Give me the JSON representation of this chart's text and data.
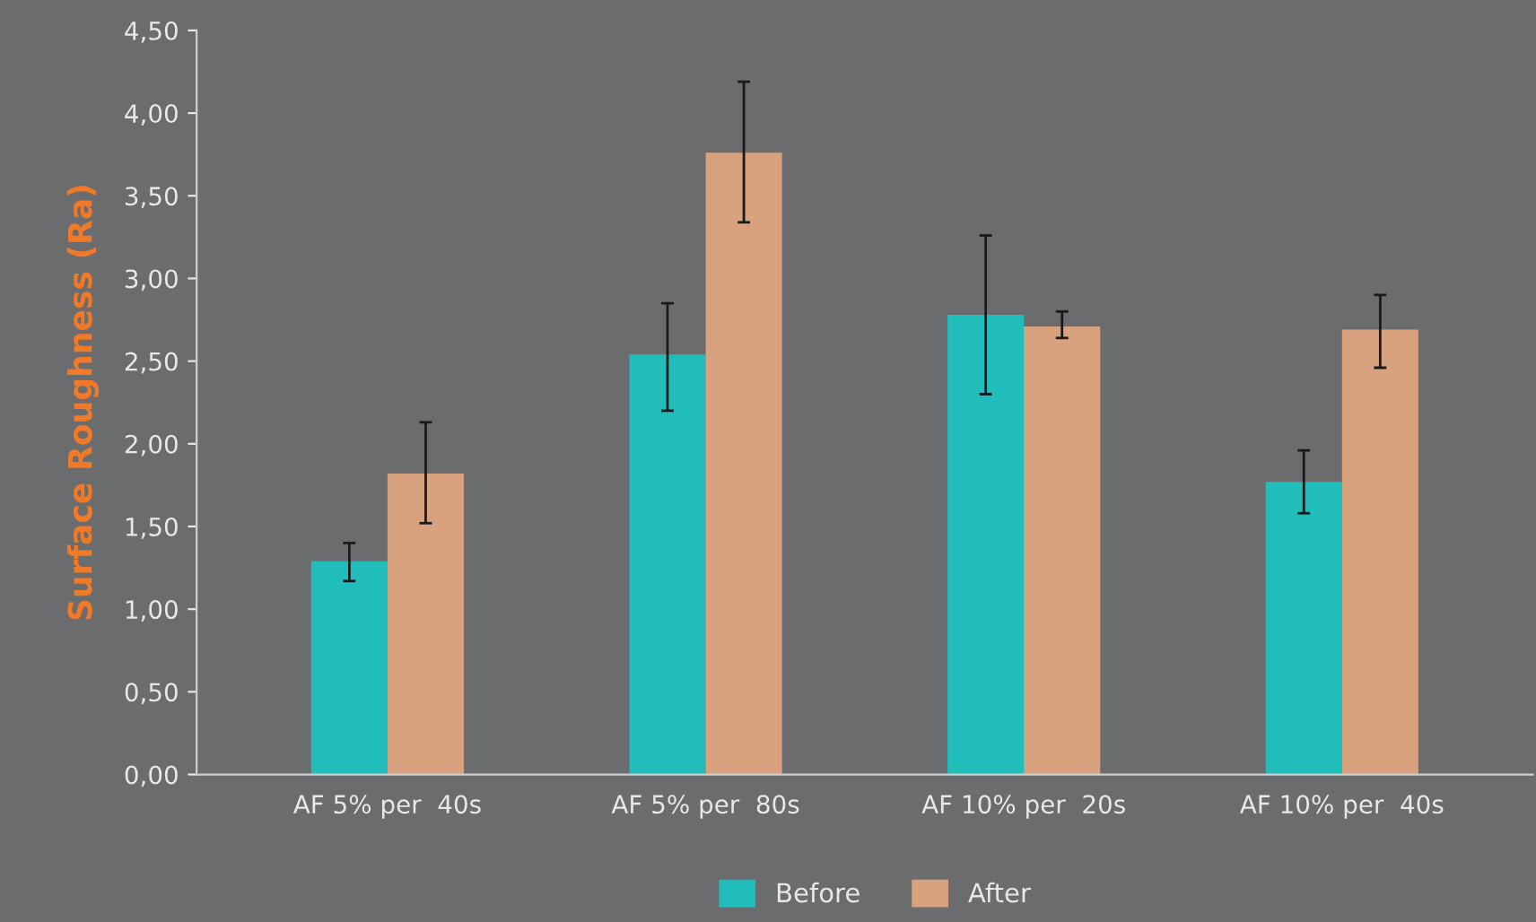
{
  "chart_data": {
    "type": "bar",
    "ylabel": "Surface Roughness (Ra)",
    "categories": [
      "AF 5% per  40s",
      "AF 5% per  80s",
      "AF 10% per  20s",
      "AF 10% per  40s"
    ],
    "series": [
      {
        "name": "Before",
        "color": "#20bdbb",
        "values": [
          1.29,
          2.54,
          2.78,
          1.77
        ],
        "errors": [
          [
            1.17,
            1.4
          ],
          [
            2.2,
            2.85
          ],
          [
            2.3,
            3.26
          ],
          [
            1.58,
            1.96
          ]
        ]
      },
      {
        "name": "After",
        "color": "#d9a27f",
        "values": [
          1.82,
          3.76,
          2.71,
          2.69
        ],
        "errors": [
          [
            1.52,
            2.13
          ],
          [
            3.34,
            4.19
          ],
          [
            2.64,
            2.8
          ],
          [
            2.46,
            2.9
          ]
        ]
      }
    ],
    "ylim": [
      0,
      4.5
    ],
    "yticks": [
      {
        "value": 0,
        "label": "0,00"
      },
      {
        "value": 0.5,
        "label": "0,50"
      },
      {
        "value": 1,
        "label": "1,00"
      },
      {
        "value": 1.5,
        "label": "1,50"
      },
      {
        "value": 2,
        "label": "2,00"
      },
      {
        "value": 2.5,
        "label": "2,50"
      },
      {
        "value": 3,
        "label": "3,00"
      },
      {
        "value": 3.5,
        "label": "3,50"
      },
      {
        "value": 4,
        "label": "4,00"
      },
      {
        "value": 4.5,
        "label": "4,50"
      }
    ],
    "legend": "bottom"
  }
}
